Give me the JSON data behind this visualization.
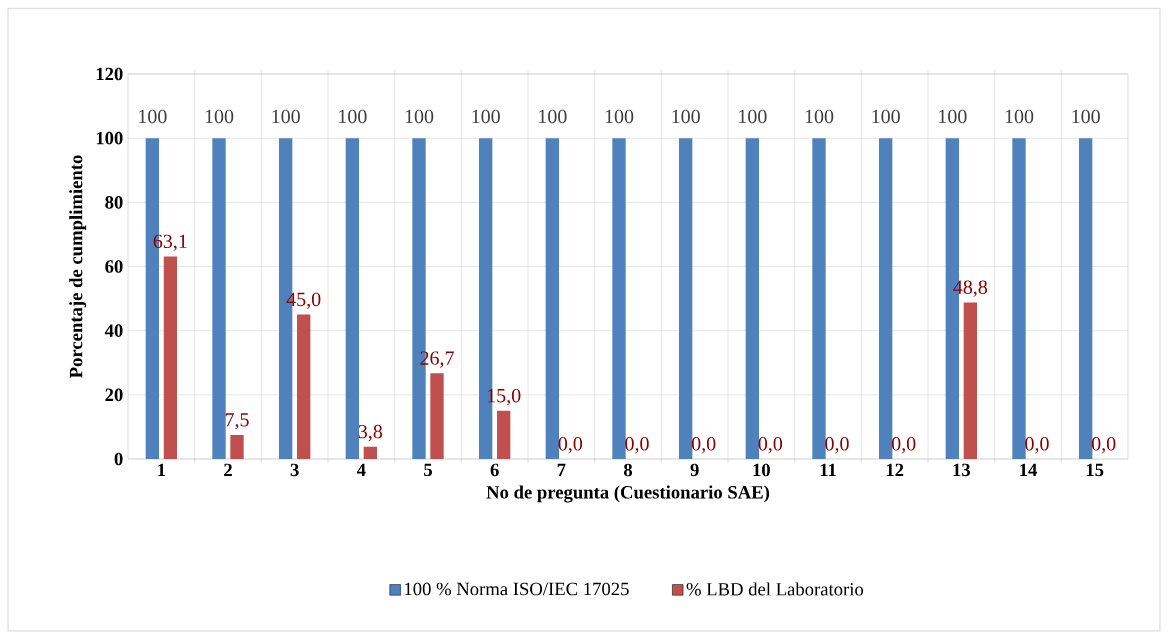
{
  "chart_data": {
    "type": "bar",
    "xlabel": "No de pregunta (Cuestionario SAE)",
    "ylabel": "Porcentaje de cumplimiento",
    "categories": [
      "1",
      "2",
      "3",
      "4",
      "5",
      "6",
      "7",
      "8",
      "9",
      "10",
      "11",
      "12",
      "13",
      "14",
      "15"
    ],
    "series": [
      {
        "name": "100 % Norma ISO/IEC 17025",
        "color": "#4f81bd",
        "values": [
          100,
          100,
          100,
          100,
          100,
          100,
          100,
          100,
          100,
          100,
          100,
          100,
          100,
          100,
          100
        ],
        "value_labels": [
          "100",
          "100",
          "100",
          "100",
          "100",
          "100",
          "100",
          "100",
          "100",
          "100",
          "100",
          "100",
          "100",
          "100",
          "100"
        ]
      },
      {
        "name": "% LBD del Laboratorio",
        "color": "#c0504d",
        "values": [
          63.1,
          7.5,
          45.0,
          3.8,
          26.7,
          15.0,
          0,
          0,
          0,
          0,
          0,
          0,
          48.8,
          0,
          0
        ],
        "value_labels": [
          "63,1",
          "7,5",
          "45,0",
          "3,8",
          "26,7",
          "15,0",
          "0,0",
          "0,0",
          "0,0",
          "0,0",
          "0,0",
          "0,0",
          "48,8",
          "0,0",
          "0,0"
        ]
      }
    ],
    "ylim": [
      0,
      120
    ],
    "yticks": [
      0,
      20,
      40,
      60,
      80,
      100,
      120
    ],
    "grid": true,
    "legend": "bottom"
  }
}
